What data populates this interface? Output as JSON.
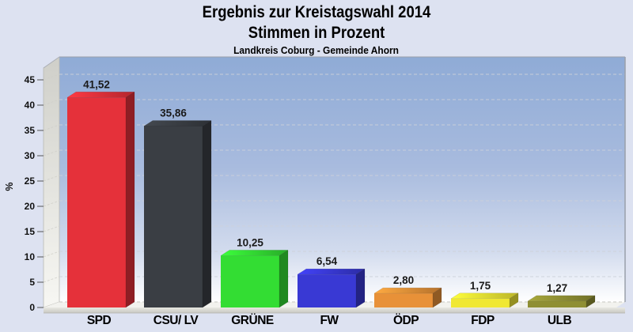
{
  "title": {
    "line1": "Ergebnis zur Kreistagswahl 2014",
    "line2": "Stimmen in Prozent",
    "subtitle": "Landkreis Coburg - Gemeinde Ahorn"
  },
  "chart_data": {
    "type": "bar",
    "style": "3d-bar",
    "title": "Ergebnis zur Kreistagswahl 2014",
    "subtitle": "Stimmen in Prozent",
    "caption": "Landkreis Coburg - Gemeinde Ahorn",
    "xlabel": "",
    "ylabel": "%",
    "ylim": [
      0,
      45
    ],
    "yticks": [
      0,
      5,
      10,
      15,
      20,
      25,
      30,
      35,
      40,
      45
    ],
    "grid": true,
    "grid_style": "dashed",
    "legend": "none",
    "categories": [
      "SPD",
      "CSU/ LV",
      "GRÜNE",
      "FW",
      "ÖDP",
      "FDP",
      "ULB"
    ],
    "values": [
      41.52,
      35.86,
      10.25,
      6.54,
      2.8,
      1.75,
      1.27
    ],
    "value_labels": [
      "41,52",
      "35,86",
      "10,25",
      "6,54",
      "2,80",
      "1,75",
      "1,27"
    ],
    "bar_colors": [
      "#e5313a",
      "#3a3e44",
      "#33dd33",
      "#3939d4",
      "#e89138",
      "#f0e833",
      "#8f8f33"
    ]
  },
  "colors": {
    "page_background": "#dde2f1",
    "wall_top": "#8fabd6",
    "wall_bottom": "#ffffff",
    "left_wall": "#d8d8d2",
    "floor": "#f2f2ee",
    "skirt": "#c8c8c2",
    "gridline": "#cdd1da",
    "axis_text": "#111111",
    "value_text": "#1a1a1a",
    "border": "#9aa0aa"
  }
}
